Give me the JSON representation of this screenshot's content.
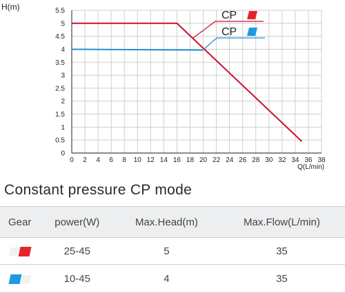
{
  "chart_data": {
    "type": "line",
    "xlabel": "Q(L/min)",
    "ylabel": "H(m)",
    "xlim": [
      0,
      38
    ],
    "ylim": [
      0,
      5.5
    ],
    "x_ticks": [
      0,
      2,
      4,
      6,
      8,
      10,
      12,
      14,
      16,
      18,
      20,
      22,
      24,
      26,
      28,
      30,
      32,
      34,
      36,
      38
    ],
    "y_ticks": [
      0,
      0.5,
      1,
      1.5,
      2,
      2.5,
      3,
      3.5,
      4,
      4.5,
      5,
      5.5
    ],
    "grid": true,
    "series": [
      {
        "name": "CP",
        "color": "#c8102e",
        "points": [
          [
            0,
            5
          ],
          [
            16,
            5
          ],
          [
            35,
            0.45
          ]
        ]
      },
      {
        "name": "CP",
        "color": "#1e8fd0",
        "points": [
          [
            0,
            4
          ],
          [
            20,
            3.97
          ]
        ]
      }
    ],
    "legend": [
      {
        "label": "CP",
        "color": "#e5252a"
      },
      {
        "label": "CP",
        "color": "#1e9be0"
      }
    ]
  },
  "section_title": "Constant pressure CP mode",
  "table": {
    "headers": [
      "Gear",
      "power(W)",
      "Max.Head(m)",
      "Max.Flow(L/min)"
    ],
    "rows": [
      {
        "gear_color": "#e5252a",
        "power": "25-45",
        "head": "5",
        "flow": "35"
      },
      {
        "gear_color": "#1e9be0",
        "power": "10-45",
        "head": "4",
        "flow": "35"
      }
    ]
  }
}
